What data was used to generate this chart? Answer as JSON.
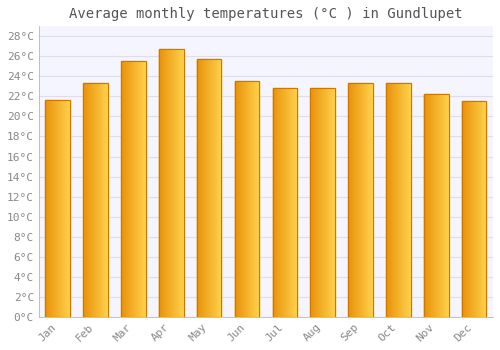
{
  "months": [
    "Jan",
    "Feb",
    "Mar",
    "Apr",
    "May",
    "Jun",
    "Jul",
    "Aug",
    "Sep",
    "Oct",
    "Nov",
    "Dec"
  ],
  "values": [
    21.6,
    23.3,
    25.5,
    26.7,
    25.7,
    23.5,
    22.8,
    22.8,
    23.3,
    23.3,
    22.2,
    21.5
  ],
  "bar_color_left": "#E8920A",
  "bar_color_right": "#FFD04A",
  "bar_edge_color": "#CC7700",
  "title": "Average monthly temperatures (°C ) in Gundlupet",
  "ylim": [
    0,
    29
  ],
  "ytick_step": 2,
  "background_color": "#ffffff",
  "plot_bg_color": "#f5f5ff",
  "grid_color": "#ddddee",
  "title_fontsize": 10,
  "tick_fontsize": 8,
  "label_color": "#888888",
  "title_color": "#555555"
}
